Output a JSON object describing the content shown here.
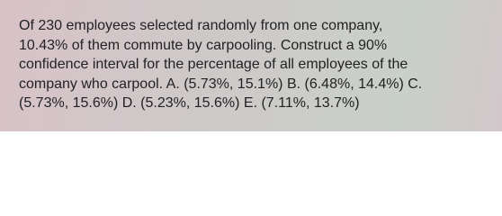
{
  "question": {
    "lines": [
      "Of 230 employees selected randomly from one company,",
      "10.43% of them commute by carpooling. Construct a 90%",
      "confidence interval for the percentage of all employees of the",
      "company who carpool. A. (5.73%, 15.1%) B. (6.48%, 14.4%) C.",
      "(5.73%, 15.6%) D. (5.23%, 15.6%) E. (7.11%, 13.7%)"
    ]
  }
}
